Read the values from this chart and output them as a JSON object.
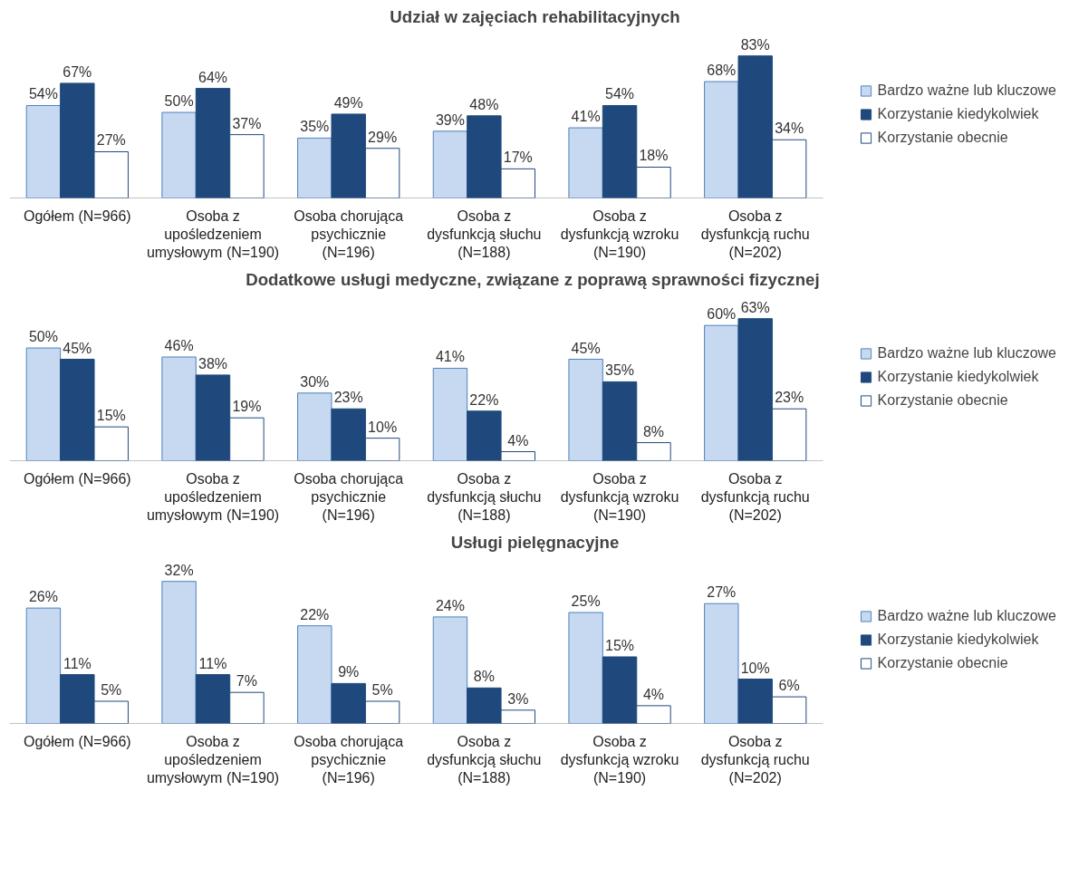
{
  "chart_data": [
    {
      "type": "bar",
      "title": "Udział w zajęciach rehabilitacyjnych",
      "categories": [
        "Ogółem (N=966)",
        "Osoba z upośledzeniem umysłowym (N=190)",
        "Osoba chorująca psychicznie (N=196)",
        "Osoba z dysfunkcją słuchu (N=188)",
        "Osoba z dysfunkcją wzroku (N=190)",
        "Osoba z dysfunkcją ruchu (N=202)"
      ],
      "legend": "right",
      "grid": false,
      "series": [
        {
          "name": "Bardzo ważne lub kluczowe",
          "color": "#c6d9f1",
          "values": [
            54,
            50,
            35,
            39,
            41,
            68
          ],
          "value_labels": [
            "54%",
            "50%",
            "35%",
            "39%",
            "41%",
            "68%"
          ]
        },
        {
          "name": "Korzystanie kiedykolwiek",
          "color": "#1f497d",
          "values": [
            67,
            64,
            49,
            48,
            54,
            83
          ],
          "value_labels": [
            "67%",
            "64%",
            "49%",
            "48%",
            "54%",
            "83%"
          ]
        },
        {
          "name": "Korzystanie obecnie",
          "color": "#ffffff",
          "values": [
            27,
            37,
            29,
            17,
            18,
            34
          ],
          "value_labels": [
            "27%",
            "37%",
            "29%",
            "17%",
            "18%",
            "34%"
          ]
        }
      ]
    },
    {
      "type": "bar",
      "title": "Dodatkowe usługi medyczne, związane z poprawą  sprawności fizycznej",
      "categories": [
        "Ogółem (N=966)",
        "Osoba z upośledzeniem umysłowym (N=190)",
        "Osoba chorująca psychicznie (N=196)",
        "Osoba z dysfunkcją słuchu (N=188)",
        "Osoba z dysfunkcją wzroku (N=190)",
        "Osoba z dysfunkcją ruchu (N=202)"
      ],
      "legend": "right",
      "grid": false,
      "series": [
        {
          "name": "Bardzo ważne lub kluczowe",
          "color": "#c6d9f1",
          "values": [
            50,
            46,
            30,
            41,
            45,
            60
          ],
          "value_labels": [
            "50%",
            "46%",
            "30%",
            "41%",
            "45%",
            "60%"
          ]
        },
        {
          "name": "Korzystanie kiedykolwiek",
          "color": "#1f497d",
          "values": [
            45,
            38,
            23,
            22,
            35,
            63
          ],
          "value_labels": [
            "45%",
            "38%",
            "23%",
            "22%",
            "35%",
            "63%"
          ]
        },
        {
          "name": "Korzystanie obecnie",
          "color": "#ffffff",
          "values": [
            15,
            19,
            10,
            4,
            8,
            23
          ],
          "value_labels": [
            "15%",
            "19%",
            "10%",
            "4%",
            "8%",
            "23%"
          ]
        }
      ]
    },
    {
      "type": "bar",
      "title": "Usługi pielęgnacyjne",
      "categories": [
        "Ogółem (N=966)",
        "Osoba z upośledzeniem umysłowym (N=190)",
        "Osoba chorująca psychicznie (N=196)",
        "Osoba z dysfunkcją słuchu (N=188)",
        "Osoba z dysfunkcją wzroku (N=190)",
        "Osoba z dysfunkcją ruchu (N=202)"
      ],
      "legend": "right",
      "grid": false,
      "series": [
        {
          "name": "Bardzo ważne lub kluczowe",
          "color": "#c6d9f1",
          "values": [
            26,
            32,
            22,
            24,
            25,
            27
          ],
          "value_labels": [
            "26%",
            "32%",
            "22%",
            "24%",
            "25%",
            "27%"
          ]
        },
        {
          "name": "Korzystanie kiedykolwiek",
          "color": "#1f497d",
          "values": [
            11,
            11,
            9,
            8,
            15,
            10
          ],
          "value_labels": [
            "11%",
            "11%",
            "9%",
            "8%",
            "15%",
            "10%"
          ]
        },
        {
          "name": "Korzystanie obecnie",
          "color": "#ffffff",
          "values": [
            5,
            7,
            5,
            3,
            4,
            6
          ],
          "value_labels": [
            "5%",
            "7%",
            "5%",
            "3%",
            "4%",
            "6%"
          ]
        }
      ]
    }
  ]
}
